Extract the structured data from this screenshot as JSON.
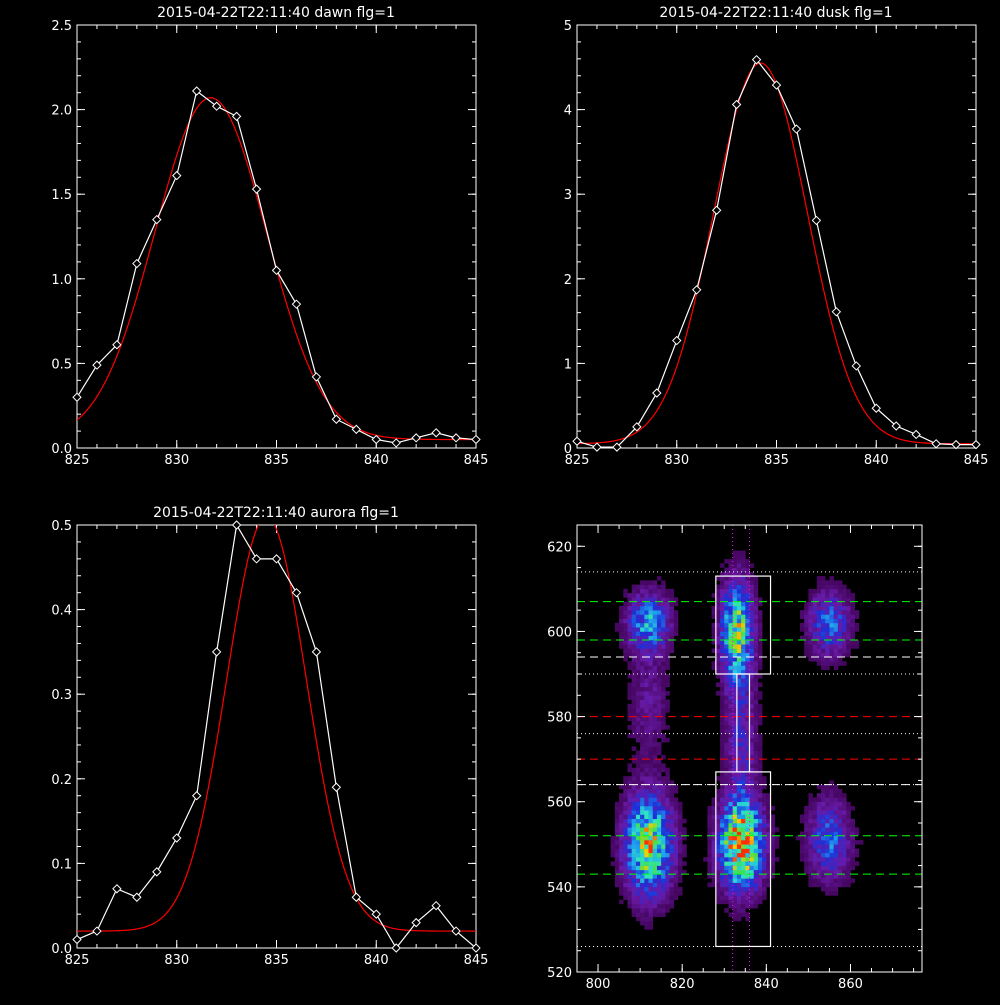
{
  "chart_data": [
    {
      "type": "line",
      "title": "2015-04-22T22:11:40 dawn flg=1",
      "xlim": [
        825,
        845
      ],
      "ylim": [
        0,
        2.5
      ],
      "xticks": [
        825,
        830,
        835,
        840,
        845
      ],
      "yticks": [
        "0.0",
        "0.5",
        "1.0",
        "1.5",
        "2.0",
        "2.5"
      ],
      "yticks_values": [
        0,
        0.5,
        1.0,
        1.5,
        2.0,
        2.5
      ],
      "series": [
        {
          "kind": "observed",
          "color": "#ffffff",
          "marker": "diamond",
          "x": [
            825,
            826,
            827,
            828,
            829,
            830,
            831,
            832,
            833,
            834,
            835,
            836,
            837,
            838,
            839,
            840,
            841,
            842,
            843,
            844,
            845
          ],
          "y": [
            0.3,
            0.49,
            0.61,
            1.09,
            1.35,
            1.61,
            2.11,
            2.02,
            1.96,
            1.53,
            1.05,
            0.85,
            0.42,
            0.17,
            0.11,
            0.05,
            0.03,
            0.06,
            0.09,
            0.06,
            0.05
          ]
        },
        {
          "kind": "fit",
          "color": "#ff0000",
          "gaussian": {
            "amp": 2.02,
            "center": 831.7,
            "sigma": 2.8,
            "offset": 0.05
          }
        }
      ]
    },
    {
      "type": "line",
      "title": "2015-04-22T22:11:40 dusk flg=1",
      "xlim": [
        825,
        845
      ],
      "ylim": [
        0,
        5
      ],
      "xticks": [
        825,
        830,
        835,
        840,
        845
      ],
      "yticks": [
        "0",
        "1",
        "2",
        "3",
        "4",
        "5"
      ],
      "yticks_values": [
        0,
        1,
        2,
        3,
        4,
        5
      ],
      "series": [
        {
          "kind": "observed",
          "color": "#ffffff",
          "marker": "diamond",
          "x": [
            825,
            826,
            827,
            828,
            829,
            830,
            831,
            832,
            833,
            834,
            835,
            836,
            837,
            838,
            839,
            840,
            841,
            842,
            843,
            844,
            845
          ],
          "y": [
            0.08,
            0.01,
            0.01,
            0.25,
            0.65,
            1.27,
            1.87,
            2.81,
            4.06,
            4.59,
            4.29,
            3.77,
            2.69,
            1.61,
            0.97,
            0.47,
            0.26,
            0.16,
            0.05,
            0.04,
            0.04
          ]
        },
        {
          "kind": "fit",
          "color": "#ff0000",
          "gaussian": {
            "amp": 4.5,
            "center": 834.2,
            "sigma": 2.35,
            "offset": 0.05
          }
        }
      ]
    },
    {
      "type": "line",
      "title": "2015-04-22T22:11:40 aurora flg=1",
      "xlim": [
        825,
        845
      ],
      "ylim": [
        0,
        0.5
      ],
      "xticks": [
        825,
        830,
        835,
        840,
        845
      ],
      "yticks": [
        "0.0",
        "0.1",
        "0.2",
        "0.3",
        "0.4",
        "0.5"
      ],
      "yticks_values": [
        0,
        0.1,
        0.2,
        0.3,
        0.4,
        0.5
      ],
      "series": [
        {
          "kind": "observed",
          "color": "#ffffff",
          "marker": "diamond",
          "x": [
            825,
            826,
            827,
            828,
            829,
            830,
            831,
            832,
            833,
            834,
            835,
            836,
            837,
            838,
            839,
            840,
            841,
            842,
            843,
            844,
            845
          ],
          "y": [
            0.01,
            0.02,
            0.07,
            0.06,
            0.09,
            0.13,
            0.18,
            0.35,
            0.5,
            0.46,
            0.46,
            0.42,
            0.35,
            0.19,
            0.06,
            0.04,
            0.0,
            0.03,
            0.05,
            0.02,
            0.0
          ]
        },
        {
          "kind": "fit",
          "color": "#ff0000",
          "gaussian": {
            "amp": 0.49,
            "center": 834.5,
            "sigma": 2.0,
            "offset": 0.02
          }
        }
      ]
    },
    {
      "type": "heatmap",
      "xlim": [
        795,
        877
      ],
      "ylim": [
        520,
        625
      ],
      "xticks": [
        800,
        820,
        840,
        860
      ],
      "yticks": [
        520,
        540,
        560,
        580,
        600,
        620
      ],
      "colormap": [
        "#3a004a",
        "#6a1aa8",
        "#1d2fd8",
        "#1f9af0",
        "#2ee3c8",
        "#42e04a",
        "#ffd000",
        "#ff3000"
      ],
      "blobs": [
        {
          "x": 812,
          "y": 602,
          "sx": 3.2,
          "sy": 4.5,
          "amp": 0.45
        },
        {
          "x": 812,
          "y": 550,
          "sx": 3.5,
          "sy": 7.5,
          "amp": 0.75
        },
        {
          "x": 812,
          "y": 583,
          "sx": 3.0,
          "sy": 8.0,
          "amp": 0.12
        },
        {
          "x": 833,
          "y": 600,
          "sx": 2.4,
          "sy": 7.5,
          "amp": 0.68
        },
        {
          "x": 834,
          "y": 550,
          "sx": 3.2,
          "sy": 6.5,
          "amp": 1.0
        },
        {
          "x": 834,
          "y": 575,
          "sx": 2.4,
          "sy": 12.0,
          "amp": 0.2
        },
        {
          "x": 855,
          "y": 602,
          "sx": 3.2,
          "sy": 5.0,
          "amp": 0.33
        },
        {
          "x": 855,
          "y": 551,
          "sx": 3.2,
          "sy": 6.0,
          "amp": 0.33
        }
      ],
      "boxes": [
        {
          "x0": 828,
          "x1": 841,
          "y0": 590,
          "y1": 613
        },
        {
          "x0": 828,
          "x1": 841,
          "y0": 526,
          "y1": 567
        },
        {
          "x0": 833,
          "x1": 836,
          "y0": 567,
          "y1": 590
        }
      ],
      "vlines_dotted": {
        "color": "#ff00ff",
        "x": [
          832,
          836
        ]
      },
      "hlines_dotted": {
        "color": "#ffffff",
        "y": [
          526,
          564,
          576,
          590,
          614
        ]
      },
      "hlines_dashed_green": {
        "color": "#00ff00",
        "y": [
          543,
          552,
          598,
          607
        ]
      },
      "hlines_dashed_white": {
        "color": "#ffffff",
        "y": [
          564,
          594
        ]
      },
      "hlines_dashed_red": {
        "color": "#ff0000",
        "y": [
          570,
          580
        ]
      }
    }
  ]
}
